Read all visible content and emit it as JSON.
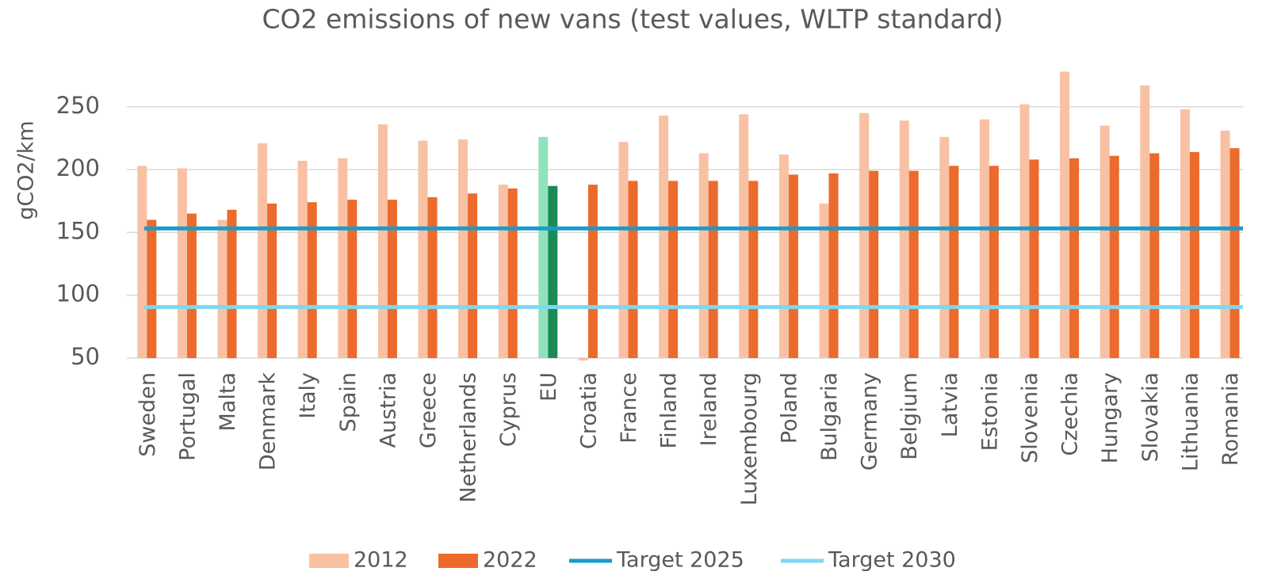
{
  "chart_data": {
    "type": "bar",
    "title": "CO2 emissions of new vans (test values, WLTP standard)",
    "y_label": "gCO2/km",
    "categories": [
      "Sweden",
      "Portugal",
      "Malta",
      "Denmark",
      "Italy",
      "Spain",
      "Austria",
      "Greece",
      "Netherlands",
      "Cyprus",
      "EU",
      "Croatia",
      "France",
      "Finland",
      "Ireland",
      "Luxembourg",
      "Poland",
      "Bulgaria",
      "Germany",
      "Belgium",
      "Latvia",
      "Estonia",
      "Slovenia",
      "Czechia",
      "Hungary",
      "Slovakia",
      "Lithuania",
      "Romania"
    ],
    "series": [
      {
        "name": "2012",
        "color": "#f8c1a4",
        "values": [
          203,
          201,
          160,
          221,
          207,
          209,
          236,
          223,
          224,
          188,
          226,
          48,
          222,
          243,
          213,
          244,
          212,
          173,
          245,
          239,
          226,
          240,
          252,
          278,
          235,
          267,
          248,
          231
        ]
      },
      {
        "name": "2022",
        "color": "#ec6a2c",
        "values": [
          160,
          165,
          168,
          173,
          174,
          176,
          176,
          178,
          181,
          185,
          187,
          188,
          191,
          191,
          191,
          191,
          196,
          197,
          199,
          199,
          203,
          203,
          208,
          209,
          211,
          213,
          214,
          217
        ]
      }
    ],
    "highlight": {
      "category": "EU",
      "colors": [
        "#8fe3bc",
        "#1b8a57"
      ]
    },
    "targets": [
      {
        "name": "Target 2025",
        "color": "#1a9ccc",
        "value": 153.2
      },
      {
        "name": "Target 2030",
        "color": "#7dd8f2",
        "value": 90.6
      }
    ],
    "ylim": [
      50,
      285
    ],
    "yticks": [
      50,
      100,
      150,
      200,
      250
    ],
    "grid": true
  }
}
